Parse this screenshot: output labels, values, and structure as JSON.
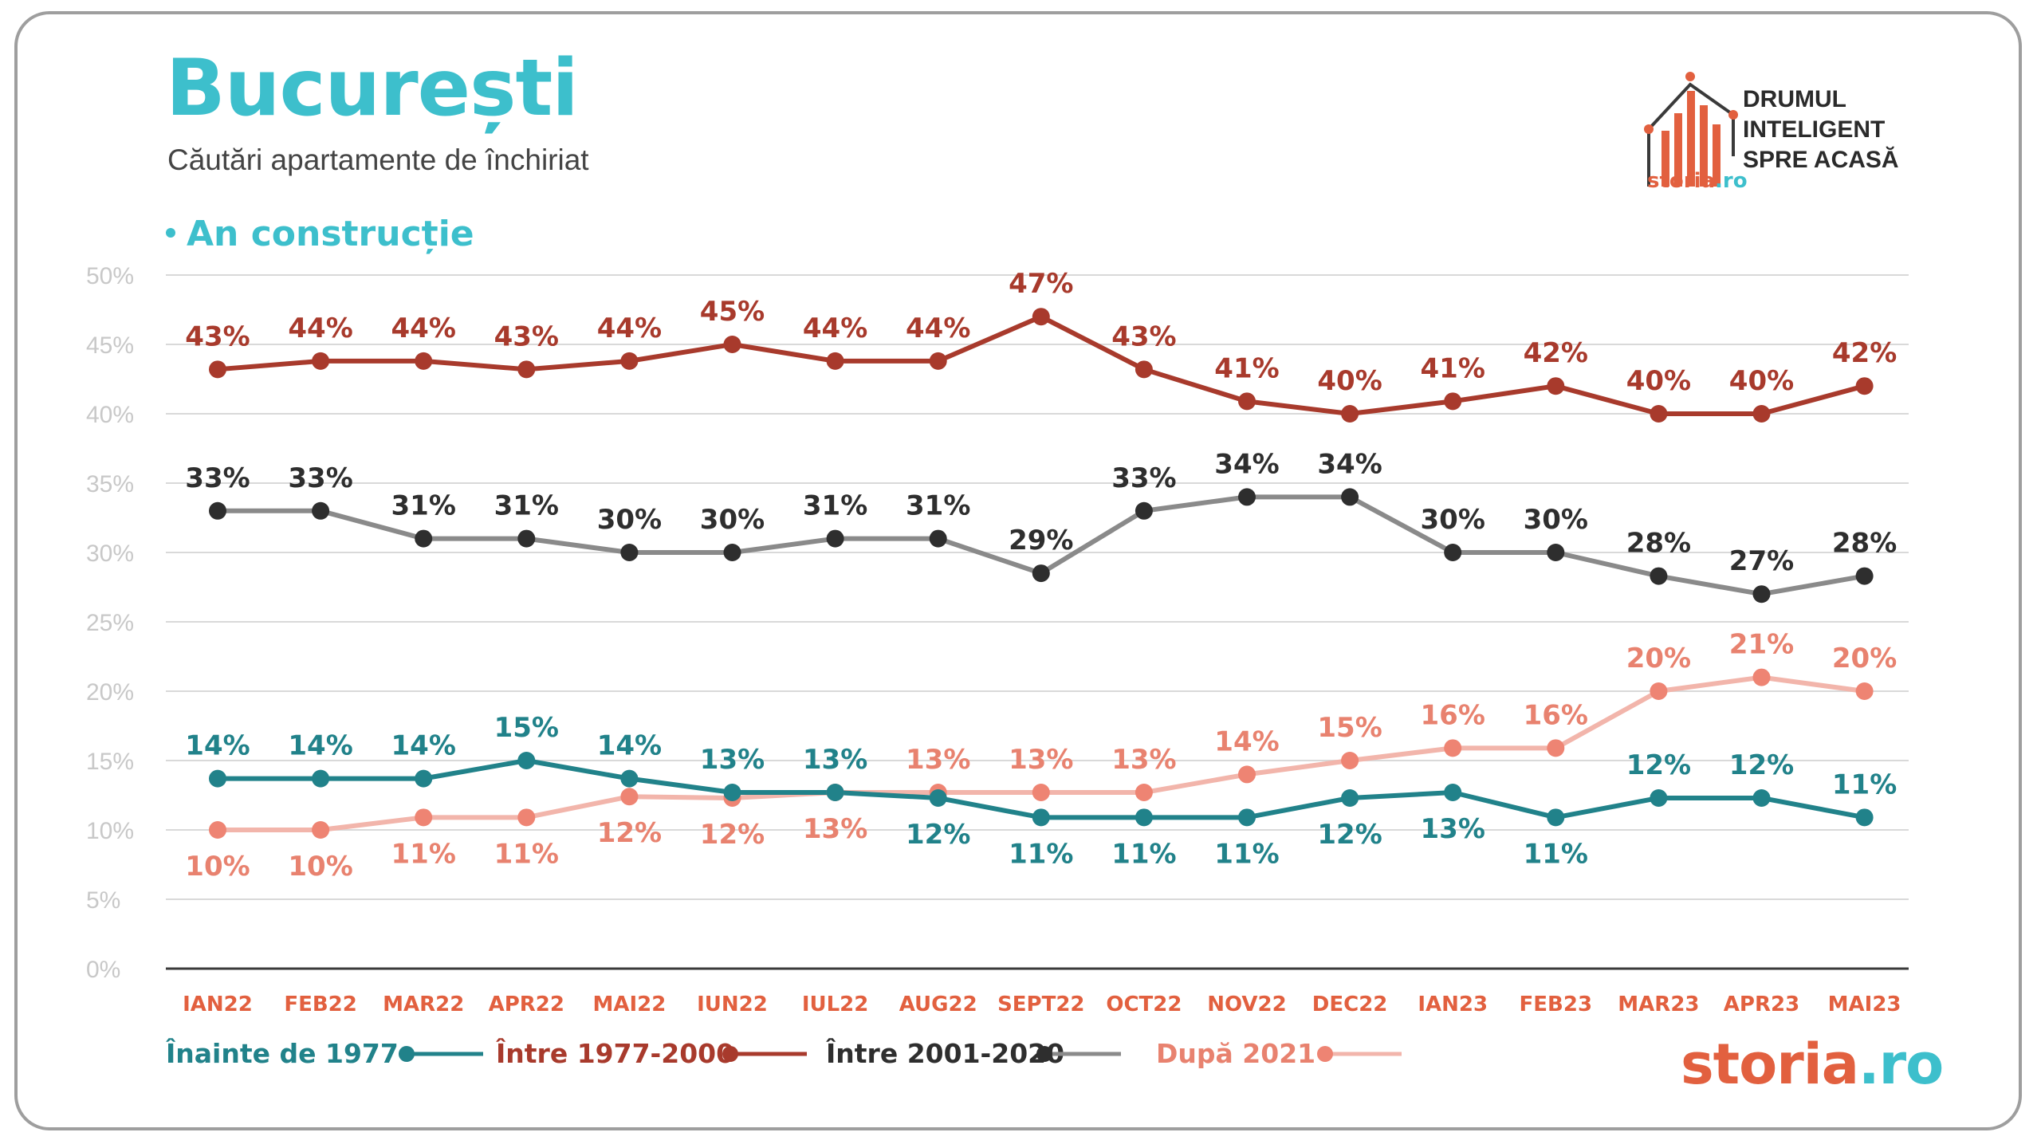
{
  "header": {
    "title": "București",
    "subtitle": "Căutări apartamente de închiriat",
    "section": "An construcție"
  },
  "logo": {
    "lines": [
      "DRUMUL",
      "INTELIGENT",
      "SPRE ACASĂ"
    ],
    "brand_left": "storia",
    "brand_right": ".ro"
  },
  "colors": {
    "teal_series": "#21828a",
    "red_series": "#a83a2c",
    "gray_series": "#8a8a8a",
    "gray_marker": "#2e2e2e",
    "pink_series": "#f2b5ab",
    "pink_marker": "#ee8473",
    "pink_label": "#e8826f",
    "axis_label": "#e2603f",
    "brand_red": "#e2603f",
    "brand_teal": "#3dbfcc",
    "grid": "#d9d9d9",
    "tick_text": "#c8c8c8"
  },
  "chart_data": {
    "type": "line",
    "categories": [
      "IAN22",
      "FEB22",
      "MAR22",
      "APR22",
      "MAI22",
      "IUN22",
      "IUL22",
      "AUG22",
      "SEPT22",
      "OCT22",
      "NOV22",
      "DEC22",
      "IAN23",
      "FEB23",
      "MAR23",
      "APR23",
      "MAI23"
    ],
    "ylim": [
      0,
      50
    ],
    "yticks": [
      "0%",
      "5%",
      "10%",
      "15%",
      "20%",
      "25%",
      "30%",
      "35%",
      "40%",
      "45%",
      "50%"
    ],
    "grid": true,
    "legend_position": "bottom",
    "series": [
      {
        "name": "Înainte de 1977",
        "values": [
          13.7,
          13.7,
          13.7,
          15,
          13.7,
          12.7,
          12.7,
          12.3,
          10.9,
          10.9,
          10.9,
          12.3,
          12.7,
          10.9,
          12.3,
          12.3,
          10.9
        ],
        "labels": [
          "14%",
          "14%",
          "14%",
          "15%",
          "14%",
          "13%",
          "13%",
          "12%",
          "11%",
          "11%",
          "11%",
          "12%",
          "13%",
          "11%",
          "12%",
          "12%",
          "11%"
        ],
        "label_pos": [
          "above",
          "above",
          "above",
          "above",
          "above",
          "above",
          "above",
          "below",
          "below",
          "below",
          "below",
          "below",
          "below",
          "below",
          "above",
          "above",
          "above"
        ]
      },
      {
        "name": "Între 1977-2000",
        "values": [
          43.2,
          43.8,
          43.8,
          43.2,
          43.8,
          45,
          43.8,
          43.8,
          47,
          43.2,
          40.9,
          40,
          40.9,
          42,
          40,
          40,
          42
        ],
        "labels": [
          "43%",
          "44%",
          "44%",
          "43%",
          "44%",
          "45%",
          "44%",
          "44%",
          "47%",
          "43%",
          "41%",
          "40%",
          "41%",
          "42%",
          "40%",
          "40%",
          "42%"
        ],
        "label_pos": [
          "above",
          "above",
          "above",
          "above",
          "above",
          "above",
          "above",
          "above",
          "above",
          "above",
          "above",
          "above",
          "above",
          "above",
          "above",
          "above",
          "above"
        ]
      },
      {
        "name": "Între 2001-2020",
        "values": [
          33,
          33,
          31,
          31,
          30,
          30,
          31,
          31,
          28.5,
          33,
          34,
          34,
          30,
          30,
          28.3,
          27,
          28.3
        ],
        "labels": [
          "33%",
          "33%",
          "31%",
          "31%",
          "30%",
          "30%",
          "31%",
          "31%",
          "29%",
          "33%",
          "34%",
          "34%",
          "30%",
          "30%",
          "28%",
          "27%",
          "28%"
        ],
        "label_pos": [
          "above",
          "above",
          "above",
          "above",
          "above",
          "above",
          "above",
          "above",
          "above",
          "above",
          "above",
          "above",
          "above",
          "above",
          "above",
          "above",
          "above"
        ]
      },
      {
        "name": "După 2021",
        "values": [
          10,
          10,
          10.9,
          10.9,
          12.4,
          12.3,
          12.7,
          12.7,
          12.7,
          12.7,
          14,
          15,
          15.9,
          15.9,
          20,
          21,
          20
        ],
        "labels": [
          "10%",
          "10%",
          "11%",
          "11%",
          "12%",
          "12%",
          "13%",
          "13%",
          "13%",
          "13%",
          "14%",
          "15%",
          "16%",
          "16%",
          "20%",
          "21%",
          "20%"
        ],
        "label_pos": [
          "below",
          "below",
          "below",
          "below",
          "below",
          "below",
          "below",
          "above",
          "above",
          "above",
          "above",
          "above",
          "above",
          "above",
          "above",
          "above",
          "above"
        ]
      }
    ]
  }
}
